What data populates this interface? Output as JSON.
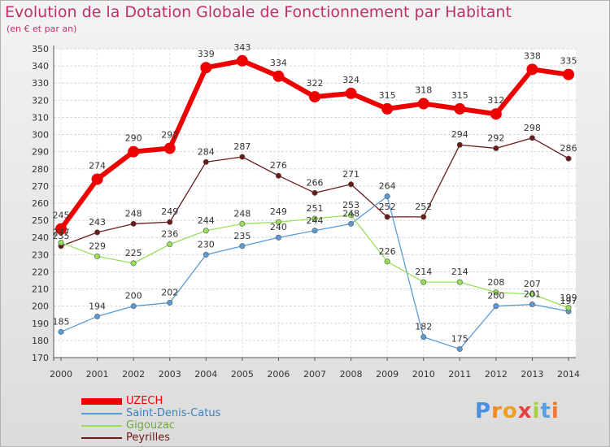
{
  "chart_data": {
    "type": "line",
    "title": "Evolution de la Dotation Globale de Fonctionnement par Habitant",
    "subtitle": "(en € et par an)",
    "x": [
      "2000",
      "2001",
      "2002",
      "2003",
      "2004",
      "2005",
      "2006",
      "2007",
      "2008",
      "2009",
      "2010",
      "2011",
      "2012",
      "2013",
      "2014"
    ],
    "ylim": [
      170,
      350
    ],
    "yticks": [
      170,
      180,
      190,
      200,
      210,
      220,
      230,
      240,
      250,
      260,
      270,
      280,
      290,
      300,
      310,
      320,
      330,
      340,
      350
    ],
    "grid": true,
    "legend_position": "bottom-left",
    "series": [
      {
        "name": "UZECH",
        "color": "#ee0000",
        "values": [
          245,
          274,
          290,
          292,
          339,
          343,
          334,
          322,
          324,
          315,
          318,
          315,
          312,
          338,
          335
        ]
      },
      {
        "name": "Saint-Denis-Catus",
        "color": "#5b9bd5",
        "values": [
          185,
          194,
          200,
          202,
          230,
          235,
          240,
          244,
          248,
          264,
          182,
          175,
          200,
          201,
          197
        ]
      },
      {
        "name": "Gigouzac",
        "color": "#99e05a",
        "values": [
          237,
          229,
          225,
          236,
          244,
          248,
          249,
          251,
          253,
          226,
          214,
          214,
          208,
          207,
          199
        ]
      },
      {
        "name": "Peyrilles",
        "color": "#6b1a1a",
        "values": [
          235,
          243,
          248,
          249,
          284,
          287,
          276,
          266,
          271,
          252,
          252,
          294,
          292,
          298,
          286
        ]
      }
    ]
  },
  "logo": {
    "letters": [
      "P",
      "r",
      "o",
      "x",
      "i",
      "t",
      "i"
    ],
    "colors": [
      "#4a8ee0",
      "#f08a1c",
      "#f0a020",
      "#e84040",
      "#a8d040",
      "#5aa0e0",
      "#f07830"
    ]
  }
}
